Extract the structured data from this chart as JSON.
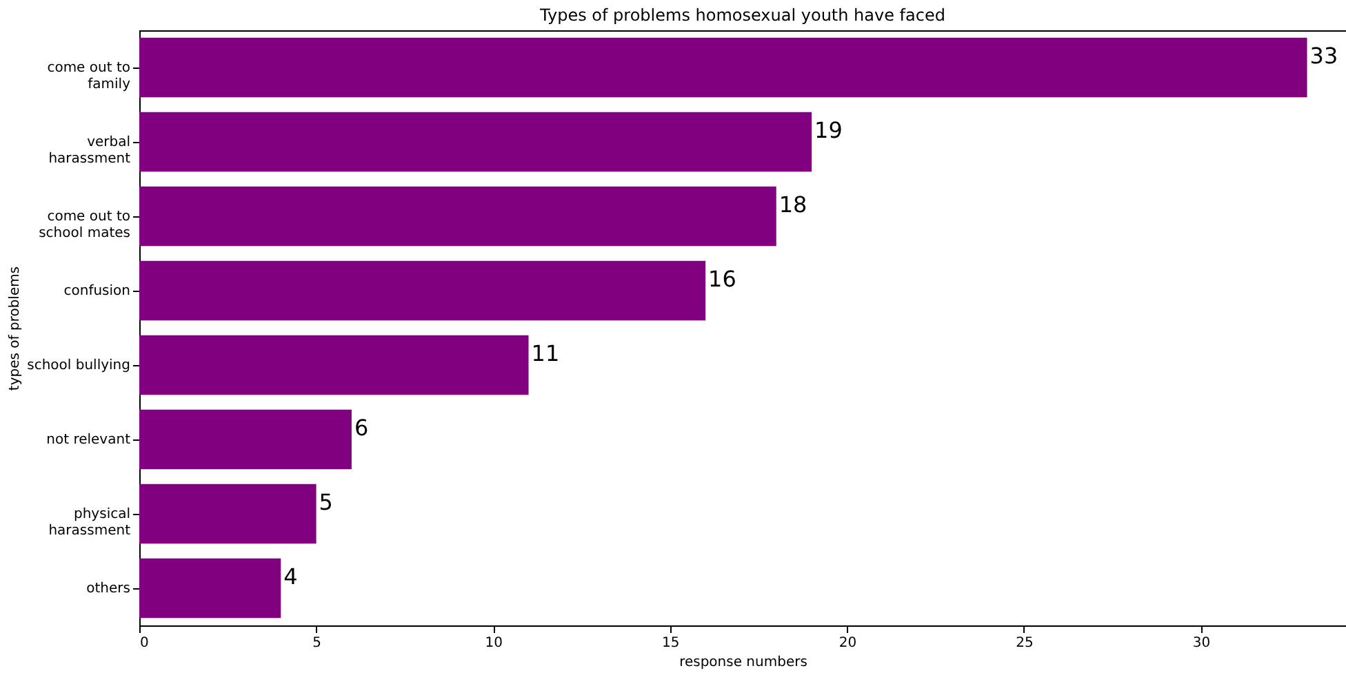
{
  "chart_data": {
    "type": "bar",
    "orientation": "horizontal",
    "title": "Types of problems homosexual youth have faced",
    "xlabel": "response numbers",
    "ylabel": "types of problems",
    "categories": [
      "come out to\nfamily",
      "verbal\nharassment",
      "come out to\nschool mates",
      "confusion",
      "school bullying",
      "not relevant",
      "physical\nharassment",
      "others"
    ],
    "values": [
      33,
      19,
      18,
      16,
      11,
      6,
      5,
      4
    ],
    "color": "#800080",
    "xlim": [
      0,
      34.1
    ],
    "xticks": [
      0,
      5,
      10,
      15,
      20,
      25,
      30
    ],
    "grid": false,
    "data_labels": true
  }
}
